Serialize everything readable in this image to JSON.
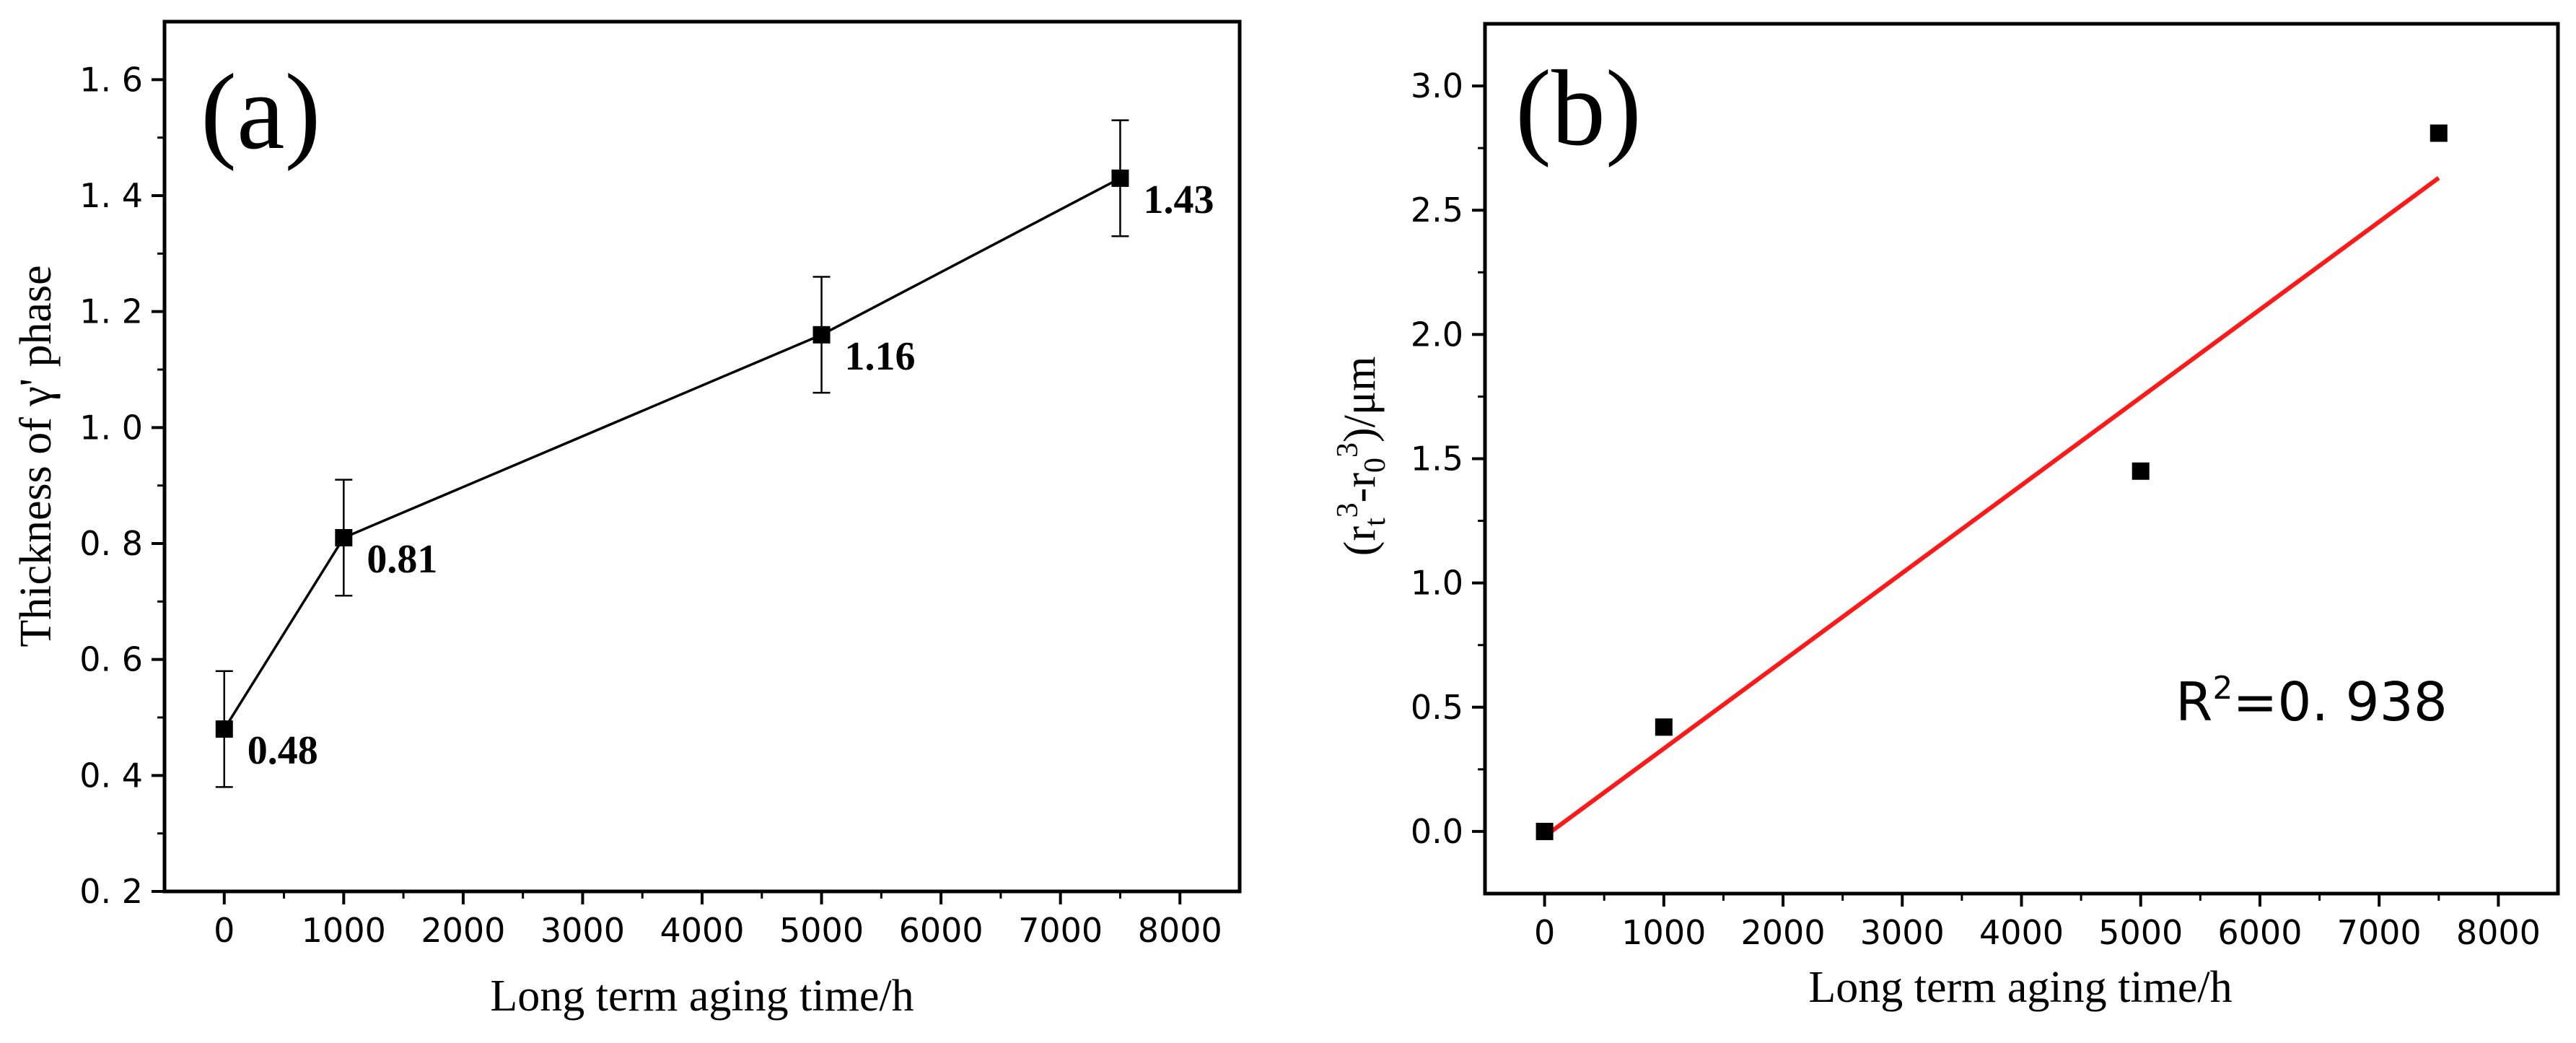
{
  "chart_data": [
    {
      "type": "line",
      "panel_label": "(a)",
      "xlabel": "Long term aging time/h",
      "ylabel": "Thickness of γ' phase",
      "xlim": [
        -500,
        8500
      ],
      "ylim": [
        0.2,
        1.7
      ],
      "xticks": [
        0,
        1000,
        2000,
        3000,
        4000,
        5000,
        6000,
        7000,
        8000
      ],
      "xtick_labels": [
        "0",
        "1000",
        "2000",
        "3000",
        "4000",
        "5000",
        "6000",
        "7000",
        "8000"
      ],
      "yticks": [
        0.2,
        0.4,
        0.6,
        0.8,
        1.0,
        1.2,
        1.4,
        1.6
      ],
      "ytick_labels": [
        "0. 2",
        "0. 4",
        "0. 6",
        "0. 8",
        "1. 0",
        "1. 2",
        "1. 4",
        "1. 6"
      ],
      "x": [
        0,
        1000,
        5000,
        7500
      ],
      "y": [
        0.48,
        0.81,
        1.16,
        1.43
      ],
      "error": [
        0.1,
        0.1,
        0.1,
        0.1
      ],
      "data_labels": [
        "0.48",
        "0.81",
        "1.16",
        "1.43"
      ],
      "grid": false
    },
    {
      "type": "scatter",
      "panel_label": "(b)",
      "xlabel": "Long term aging time/h",
      "ylabel_parts": [
        "(r",
        "t",
        "3",
        "-r",
        "0",
        "3",
        ")/μm"
      ],
      "xlim": [
        -500,
        8500
      ],
      "ylim": [
        -0.25,
        3.25
      ],
      "xticks": [
        0,
        1000,
        2000,
        3000,
        4000,
        5000,
        6000,
        7000,
        8000
      ],
      "xtick_labels": [
        "0",
        "1000",
        "2000",
        "3000",
        "4000",
        "5000",
        "6000",
        "7000",
        "8000"
      ],
      "yticks": [
        0.0,
        0.5,
        1.0,
        1.5,
        2.0,
        2.5,
        3.0
      ],
      "ytick_labels": [
        "0.0",
        "0.5",
        "1.0",
        "1.5",
        "2.0",
        "2.5",
        "3.0"
      ],
      "x": [
        0,
        1000,
        5000,
        7500
      ],
      "y": [
        0.0,
        0.42,
        1.45,
        2.81
      ],
      "fit_line": {
        "x": [
          0,
          7500
        ],
        "y": [
          -0.02,
          2.63
        ],
        "color": "#ff1a1a"
      },
      "annotation_parts": [
        "R",
        "2",
        "=0. 938"
      ],
      "grid": false
    }
  ]
}
